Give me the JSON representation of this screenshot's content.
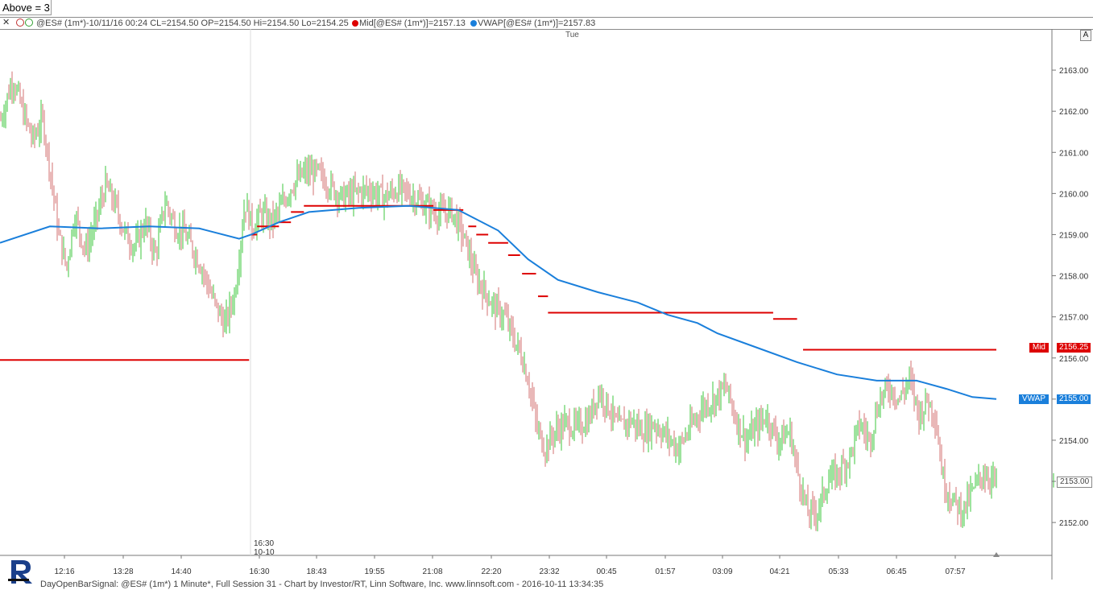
{
  "above_label": "Above = 3",
  "header": {
    "symbol_info": "@ES# (1m*)-10/11/16 00:24 CL=2154.50 OP=2154.50 Hi=2154.50 Lo=2154.25",
    "mid_info": "Mid[@ES# (1m*)]=2157.13",
    "vwap_info": "VWAP[@ES# (1m*)]=2157.83",
    "day_label": "Tue",
    "dot_colors": [
      "#e85050",
      "#40a040"
    ],
    "mid_color": "#dd0000",
    "vwap_color": "#1a7fdb"
  },
  "scale_button": "A",
  "footer": "DayOpenBarSignal: @ES# (1m*) 1 Minute*, Full Session 31 - Chart by Investor/RT, Linn Software, Inc. www.linnsoft.com - 2016-10-11 13:34:35",
  "session_marker": {
    "time": "16:30",
    "date": "10-10"
  },
  "chart_data": {
    "type": "bar",
    "symbol": "@ES#",
    "interval": "1 Minute",
    "ylim": [
      2151.2,
      2164.0
    ],
    "y_ticks": [
      2152.0,
      2153.0,
      2154.0,
      2155.0,
      2156.0,
      2157.0,
      2158.0,
      2159.0,
      2160.0,
      2161.0,
      2162.0,
      2163.0
    ],
    "x_ticks": [
      "12:16",
      "13:28",
      "14:40",
      "16:30",
      "18:43",
      "19:55",
      "21:08",
      "22:20",
      "23:32",
      "00:45",
      "01:57",
      "03:09",
      "04:21",
      "05:33",
      "06:45",
      "07:57"
    ],
    "price_series": [
      [
        0.0,
        2161.8
      ],
      [
        0.012,
        2162.8
      ],
      [
        0.022,
        2162.0
      ],
      [
        0.032,
        2161.3
      ],
      [
        0.042,
        2161.8
      ],
      [
        0.05,
        2160.5
      ],
      [
        0.058,
        2159.0
      ],
      [
        0.066,
        2158.2
      ],
      [
        0.074,
        2159.5
      ],
      [
        0.085,
        2158.6
      ],
      [
        0.095,
        2159.3
      ],
      [
        0.105,
        2160.2
      ],
      [
        0.115,
        2159.7
      ],
      [
        0.125,
        2159.0
      ],
      [
        0.135,
        2158.7
      ],
      [
        0.145,
        2159.3
      ],
      [
        0.155,
        2158.5
      ],
      [
        0.165,
        2159.8
      ],
      [
        0.175,
        2159.2
      ],
      [
        0.185,
        2159.0
      ],
      [
        0.2,
        2158.3
      ],
      [
        0.215,
        2157.3
      ],
      [
        0.225,
        2156.8
      ],
      [
        0.235,
        2157.6
      ],
      [
        0.245,
        2159.8
      ],
      [
        0.252,
        2159.2
      ],
      [
        0.262,
        2159.5
      ],
      [
        0.272,
        2159.3
      ],
      [
        0.282,
        2159.7
      ],
      [
        0.292,
        2160.2
      ],
      [
        0.305,
        2160.5
      ],
      [
        0.318,
        2160.5
      ],
      [
        0.33,
        2160.2
      ],
      [
        0.342,
        2159.9
      ],
      [
        0.355,
        2160.0
      ],
      [
        0.37,
        2160.1
      ],
      [
        0.385,
        2159.9
      ],
      [
        0.398,
        2160.1
      ],
      [
        0.41,
        2160.0
      ],
      [
        0.42,
        2159.8
      ],
      [
        0.432,
        2159.6
      ],
      [
        0.442,
        2159.5
      ],
      [
        0.452,
        2159.6
      ],
      [
        0.46,
        2159.2
      ],
      [
        0.468,
        2158.7
      ],
      [
        0.476,
        2158.0
      ],
      [
        0.486,
        2157.6
      ],
      [
        0.496,
        2157.2
      ],
      [
        0.506,
        2157.0
      ],
      [
        0.514,
        2156.5
      ],
      [
        0.522,
        2156.1
      ],
      [
        0.53,
        2155.4
      ],
      [
        0.538,
        2154.3
      ],
      [
        0.546,
        2153.8
      ],
      [
        0.556,
        2154.2
      ],
      [
        0.566,
        2154.4
      ],
      [
        0.578,
        2154.3
      ],
      [
        0.59,
        2154.5
      ],
      [
        0.6,
        2155.2
      ],
      [
        0.61,
        2154.8
      ],
      [
        0.62,
        2154.3
      ],
      [
        0.632,
        2154.5
      ],
      [
        0.644,
        2154.2
      ],
      [
        0.656,
        2154.4
      ],
      [
        0.668,
        2154.1
      ],
      [
        0.68,
        2153.8
      ],
      [
        0.692,
        2154.3
      ],
      [
        0.704,
        2154.8
      ],
      [
        0.716,
        2155.0
      ],
      [
        0.728,
        2155.3
      ],
      [
        0.738,
        2154.5
      ],
      [
        0.748,
        2154.0
      ],
      [
        0.758,
        2154.3
      ],
      [
        0.768,
        2154.6
      ],
      [
        0.78,
        2154.0
      ],
      [
        0.792,
        2154.2
      ],
      [
        0.8,
        2153.2
      ],
      [
        0.81,
        2152.2
      ],
      [
        0.82,
        2152.3
      ],
      [
        0.83,
        2153.0
      ],
      [
        0.84,
        2153.2
      ],
      [
        0.852,
        2153.6
      ],
      [
        0.862,
        2154.4
      ],
      [
        0.872,
        2154.0
      ],
      [
        0.882,
        2155.0
      ],
      [
        0.892,
        2155.3
      ],
      [
        0.902,
        2155.0
      ],
      [
        0.912,
        2155.5
      ],
      [
        0.922,
        2154.6
      ],
      [
        0.93,
        2155.0
      ],
      [
        0.938,
        2154.6
      ],
      [
        0.946,
        2153.0
      ],
      [
        0.956,
        2152.5
      ],
      [
        0.966,
        2152.3
      ],
      [
        0.976,
        2152.8
      ],
      [
        0.986,
        2153.2
      ],
      [
        1.0,
        2153.0
      ]
    ],
    "vwap_series": [
      [
        0.0,
        2158.8
      ],
      [
        0.05,
        2159.2
      ],
      [
        0.1,
        2159.15
      ],
      [
        0.15,
        2159.2
      ],
      [
        0.2,
        2159.15
      ],
      [
        0.24,
        2158.9
      ],
      [
        0.252,
        2159.0
      ],
      [
        0.28,
        2159.3
      ],
      [
        0.31,
        2159.55
      ],
      [
        0.36,
        2159.65
      ],
      [
        0.41,
        2159.7
      ],
      [
        0.46,
        2159.6
      ],
      [
        0.5,
        2159.1
      ],
      [
        0.53,
        2158.4
      ],
      [
        0.56,
        2157.9
      ],
      [
        0.6,
        2157.6
      ],
      [
        0.64,
        2157.35
      ],
      [
        0.67,
        2157.05
      ],
      [
        0.7,
        2156.85
      ],
      [
        0.72,
        2156.6
      ],
      [
        0.76,
        2156.25
      ],
      [
        0.8,
        2155.9
      ],
      [
        0.84,
        2155.6
      ],
      [
        0.88,
        2155.45
      ],
      [
        0.92,
        2155.45
      ],
      [
        0.95,
        2155.25
      ],
      [
        0.976,
        2155.05
      ],
      [
        1.0,
        2155.0
      ]
    ],
    "mid_segments": [
      [
        0.0,
        0.25,
        2155.95
      ],
      [
        0.252,
        0.258,
        2159.0
      ],
      [
        0.258,
        0.28,
        2159.2
      ],
      [
        0.28,
        0.292,
        2159.3
      ],
      [
        0.292,
        0.305,
        2159.55
      ],
      [
        0.305,
        0.435,
        2159.7
      ],
      [
        0.435,
        0.465,
        2159.6
      ],
      [
        0.47,
        0.478,
        2159.2
      ],
      [
        0.478,
        0.49,
        2159.0
      ],
      [
        0.49,
        0.51,
        2158.8
      ],
      [
        0.51,
        0.522,
        2158.5
      ],
      [
        0.524,
        0.538,
        2158.05
      ],
      [
        0.54,
        0.55,
        2157.5
      ],
      [
        0.55,
        0.776,
        2157.1
      ],
      [
        0.776,
        0.8,
        2156.95
      ],
      [
        0.806,
        1.0,
        2156.2
      ]
    ],
    "last_values": [
      {
        "name": "Mid",
        "value": "2156.25",
        "color": "#dd0000"
      },
      {
        "name": "VWAP",
        "value": "2155.00",
        "color": "#1a7fdb"
      },
      {
        "name": "",
        "value": "2153.00",
        "color": "#808080"
      }
    ],
    "grid": false
  }
}
